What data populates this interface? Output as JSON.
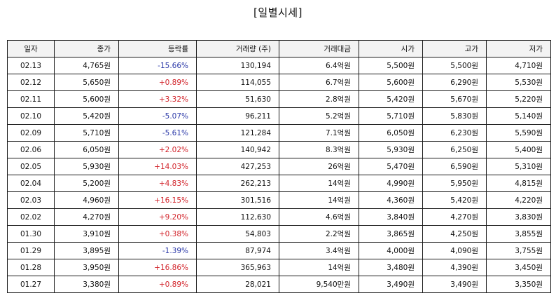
{
  "title": "[일별시세]",
  "columns": [
    "일자",
    "종가",
    "등락률",
    "거래량 (주)",
    "거래대금",
    "시가",
    "고가",
    "저가"
  ],
  "colors": {
    "up": "#d2232a",
    "down": "#2b39a8"
  },
  "rows": [
    {
      "date": "02.13",
      "close": "4,765원",
      "change": "-15.66%",
      "direction": "down",
      "volume": "130,194",
      "amount": "6.4억원",
      "open": "5,500원",
      "high": "5,500원",
      "low": "4,710원"
    },
    {
      "date": "02.12",
      "close": "5,650원",
      "change": "+0.89%",
      "direction": "up",
      "volume": "114,055",
      "amount": "6.7억원",
      "open": "5,600원",
      "high": "6,290원",
      "low": "5,530원"
    },
    {
      "date": "02.11",
      "close": "5,600원",
      "change": "+3.32%",
      "direction": "up",
      "volume": "51,630",
      "amount": "2.8억원",
      "open": "5,420원",
      "high": "5,670원",
      "low": "5,220원"
    },
    {
      "date": "02.10",
      "close": "5,420원",
      "change": "-5.07%",
      "direction": "down",
      "volume": "96,211",
      "amount": "5.2억원",
      "open": "5,710원",
      "high": "5,830원",
      "low": "5,140원"
    },
    {
      "date": "02.09",
      "close": "5,710원",
      "change": "-5.61%",
      "direction": "down",
      "volume": "121,284",
      "amount": "7.1억원",
      "open": "6,050원",
      "high": "6,230원",
      "low": "5,590원"
    },
    {
      "date": "02.06",
      "close": "6,050원",
      "change": "+2.02%",
      "direction": "up",
      "volume": "140,942",
      "amount": "8.3억원",
      "open": "5,930원",
      "high": "6,250원",
      "low": "5,400원"
    },
    {
      "date": "02.05",
      "close": "5,930원",
      "change": "+14.03%",
      "direction": "up",
      "volume": "427,253",
      "amount": "26억원",
      "open": "5,470원",
      "high": "6,590원",
      "low": "5,310원"
    },
    {
      "date": "02.04",
      "close": "5,200원",
      "change": "+4.83%",
      "direction": "up",
      "volume": "262,213",
      "amount": "14억원",
      "open": "4,990원",
      "high": "5,950원",
      "low": "4,815원"
    },
    {
      "date": "02.03",
      "close": "4,960원",
      "change": "+16.15%",
      "direction": "up",
      "volume": "301,516",
      "amount": "14억원",
      "open": "4,360원",
      "high": "5,420원",
      "low": "4,220원"
    },
    {
      "date": "02.02",
      "close": "4,270원",
      "change": "+9.20%",
      "direction": "up",
      "volume": "112,630",
      "amount": "4.6억원",
      "open": "3,840원",
      "high": "4,270원",
      "low": "3,830원"
    },
    {
      "date": "01.30",
      "close": "3,910원",
      "change": "+0.38%",
      "direction": "up",
      "volume": "54,803",
      "amount": "2.2억원",
      "open": "3,865원",
      "high": "4,250원",
      "low": "3,855원"
    },
    {
      "date": "01.29",
      "close": "3,895원",
      "change": "-1.39%",
      "direction": "down",
      "volume": "87,974",
      "amount": "3.4억원",
      "open": "4,000원",
      "high": "4,090원",
      "low": "3,755원"
    },
    {
      "date": "01.28",
      "close": "3,950원",
      "change": "+16.86%",
      "direction": "up",
      "volume": "365,963",
      "amount": "14억원",
      "open": "3,480원",
      "high": "4,390원",
      "low": "3,450원"
    },
    {
      "date": "01.27",
      "close": "3,380원",
      "change": "+0.89%",
      "direction": "up",
      "volume": "28,021",
      "amount": "9,540만원",
      "open": "3,490원",
      "high": "3,490원",
      "low": "3,350원"
    }
  ]
}
